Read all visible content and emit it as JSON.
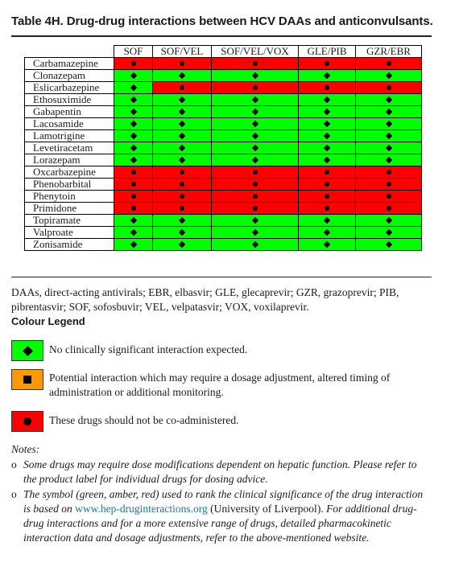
{
  "title": "Table 4H.  Drug-drug interactions between HCV DAAs and anticonvulsants.",
  "columns": [
    "SOF",
    "SOF/VEL",
    "SOF/VEL/VOX",
    "GLE/PIB",
    "GZR/EBR"
  ],
  "rows": [
    {
      "drug": "Carbamazepine",
      "cells": [
        "red",
        "red",
        "red",
        "red",
        "red"
      ]
    },
    {
      "drug": "Clonazepam",
      "cells": [
        "green",
        "green",
        "green",
        "green",
        "green"
      ]
    },
    {
      "drug": "Eslicarbazepine",
      "cells": [
        "green",
        "red",
        "red",
        "red",
        "red"
      ]
    },
    {
      "drug": "Ethosuximide",
      "cells": [
        "green",
        "green",
        "green",
        "green",
        "green"
      ]
    },
    {
      "drug": "Gabapentin",
      "cells": [
        "green",
        "green",
        "green",
        "green",
        "green"
      ]
    },
    {
      "drug": "Lacosamide",
      "cells": [
        "green",
        "green",
        "green",
        "green",
        "green"
      ]
    },
    {
      "drug": "Lamotrigine",
      "cells": [
        "green",
        "green",
        "green",
        "green",
        "green"
      ]
    },
    {
      "drug": "Levetiracetam",
      "cells": [
        "green",
        "green",
        "green",
        "green",
        "green"
      ]
    },
    {
      "drug": "Lorazepam",
      "cells": [
        "green",
        "green",
        "green",
        "green",
        "green"
      ]
    },
    {
      "drug": "Oxcarbazepine",
      "cells": [
        "red",
        "red",
        "red",
        "red",
        "red"
      ]
    },
    {
      "drug": "Phenobarbital",
      "cells": [
        "red",
        "red",
        "red",
        "red",
        "red"
      ]
    },
    {
      "drug": "Phenytoin",
      "cells": [
        "red",
        "red",
        "red",
        "red",
        "red"
      ]
    },
    {
      "drug": "Primidone",
      "cells": [
        "red",
        "red",
        "red",
        "red",
        "red"
      ]
    },
    {
      "drug": "Topiramate",
      "cells": [
        "green",
        "green",
        "green",
        "green",
        "green"
      ]
    },
    {
      "drug": "Valproate",
      "cells": [
        "green",
        "green",
        "green",
        "green",
        "green"
      ]
    },
    {
      "drug": "Zonisamide",
      "cells": [
        "green",
        "green",
        "green",
        "green",
        "green"
      ]
    }
  ],
  "colors": {
    "green": "#00ff00",
    "amber": "#ff9900",
    "red": "#ff0000"
  },
  "symbols": {
    "green": "diamond",
    "amber": "square",
    "red": "circle"
  },
  "abbreviations": "DAAs, direct-acting antivirals; EBR, elbasvir; GLE, glecaprevir; GZR, grazoprevir; PIB, pibrentasvir; SOF, sofosbuvir; VEL, velpatasvir; VOX, voxilaprevir.",
  "legend": {
    "title": "Colour Legend",
    "items": [
      {
        "color": "green",
        "text": "No clinically significant interaction expected."
      },
      {
        "color": "amber",
        "text": "Potential interaction which may require a dosage adjustment, altered timing of administration or additional monitoring."
      },
      {
        "color": "red",
        "text": "These drugs should not be co-administered."
      }
    ]
  },
  "notes": {
    "title": "Notes:",
    "bullet": "o",
    "note1": "Some drugs may require dose modifications dependent on hepatic function. Please refer to the product label for individual drugs for dosing advice.",
    "note2_a": "The symbol (green, amber, red) used to rank the clinical significance of the drug interaction is based on",
    "note2_link": "www.hep-druginteractions.org",
    "note2_b": "(University of Liverpool).",
    "note2_c": "For additional drug-drug interactions and for a more extensive range of drugs, detailed pharmacokinetic interaction data and dosage adjustments, refer to the above-mentioned website."
  }
}
